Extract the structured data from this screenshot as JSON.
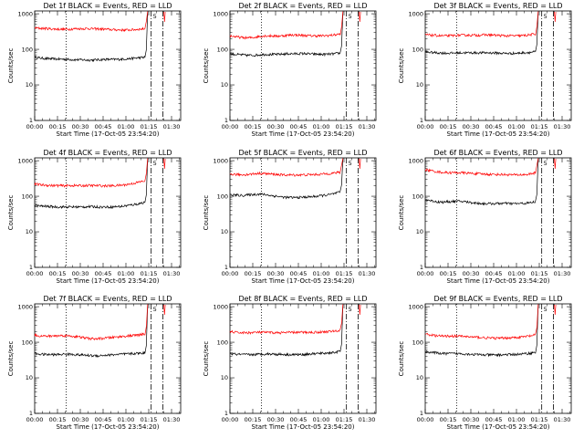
{
  "chart_data": [
    {
      "type": "line",
      "title": "Det 1f BLACK = Events, RED = LLD",
      "xlabel": "Start Time (17-Oct-05 23:54:20)",
      "ylabel": "Counts/sec",
      "x_tick_labels": [
        "00:00",
        "00:15",
        "00:30",
        "00:45",
        "01:00",
        "01:15",
        "01:30"
      ],
      "y_tick_labels": [
        "1",
        "10",
        "100",
        "1000"
      ],
      "ylim": [
        1,
        1200
      ],
      "y_scale": "log",
      "annotation": "5",
      "x_marks_min": [
        20.7,
        76.6,
        84.3
      ],
      "series": [
        {
          "name": "BLACK = Events",
          "color": "#000000",
          "end_min": 72.5,
          "values": [
            60,
            57,
            55,
            54,
            53,
            53,
            52,
            51,
            51,
            50,
            50,
            51,
            52,
            52,
            52,
            53,
            54,
            56,
            58,
            60
          ]
        },
        {
          "name": "RED = LLD",
          "color": "#ff0000",
          "end_min": 72.5,
          "values": [
            400,
            390,
            385,
            375,
            370,
            365,
            370,
            380,
            380,
            385,
            380,
            375,
            370,
            360,
            355,
            350,
            350,
            355,
            370,
            380
          ]
        }
      ]
    },
    {
      "type": "line",
      "title": "Det 2f BLACK = Events, RED = LLD",
      "xlabel": "Start Time (17-Oct-05 23:54:20)",
      "ylabel": "Counts/sec",
      "x_tick_labels": [
        "00:00",
        "00:15",
        "00:30",
        "00:45",
        "01:00",
        "01:15",
        "01:30"
      ],
      "y_tick_labels": [
        "1",
        "10",
        "100",
        "1000"
      ],
      "ylim": [
        1,
        1200
      ],
      "y_scale": "log",
      "annotation": "5",
      "x_marks_min": [
        20.7,
        76.6,
        84.3
      ],
      "series": [
        {
          "name": "BLACK = Events",
          "color": "#000000",
          "end_min": 72.5,
          "values": [
            75,
            72,
            70,
            68,
            68,
            70,
            72,
            72,
            72,
            73,
            75,
            75,
            76,
            76,
            74,
            73,
            72,
            73,
            75,
            78
          ]
        },
        {
          "name": "RED = LLD",
          "color": "#ff0000",
          "end_min": 72.5,
          "values": [
            240,
            225,
            215,
            210,
            215,
            230,
            240,
            240,
            235,
            240,
            250,
            255,
            250,
            245,
            240,
            240,
            240,
            245,
            255,
            270
          ]
        }
      ]
    },
    {
      "type": "line",
      "title": "Det 3f BLACK = Events, RED = LLD",
      "xlabel": "Start Time (17-Oct-05 23:54:20)",
      "ylabel": "Counts/sec",
      "x_tick_labels": [
        "00:00",
        "00:15",
        "00:30",
        "00:45",
        "01:00",
        "01:15",
        "01:30"
      ],
      "y_tick_labels": [
        "1",
        "10",
        "100",
        "1000"
      ],
      "ylim": [
        1,
        1200
      ],
      "y_scale": "log",
      "annotation": "5",
      "x_marks_min": [
        20.7,
        76.6,
        84.3
      ],
      "series": [
        {
          "name": "BLACK = Events",
          "color": "#000000",
          "end_min": 72.5,
          "values": [
            85,
            82,
            80,
            79,
            78,
            79,
            80,
            80,
            80,
            80,
            80,
            80,
            79,
            78,
            77,
            77,
            78,
            80,
            82,
            85
          ]
        },
        {
          "name": "RED = LLD",
          "color": "#ff0000",
          "end_min": 72.5,
          "values": [
            260,
            250,
            245,
            240,
            240,
            245,
            250,
            250,
            250,
            250,
            255,
            255,
            250,
            245,
            240,
            240,
            240,
            245,
            255,
            270
          ]
        }
      ]
    },
    {
      "type": "line",
      "title": "Det 4f BLACK = Events, RED = LLD",
      "xlabel": "Start Time (17-Oct-05 23:54:20)",
      "ylabel": "Counts/sec",
      "x_tick_labels": [
        "00:00",
        "00:15",
        "00:30",
        "00:45",
        "01:00",
        "01:15",
        "01:30"
      ],
      "y_tick_labels": [
        "1",
        "10",
        "100",
        "1000"
      ],
      "ylim": [
        1,
        1200
      ],
      "y_scale": "log",
      "annotation": "5",
      "x_marks_min": [
        20.7,
        76.6,
        84.3
      ],
      "series": [
        {
          "name": "BLACK = Events",
          "color": "#000000",
          "end_min": 72.5,
          "values": [
            55,
            53,
            52,
            51,
            50,
            50,
            50,
            50,
            50,
            51,
            51,
            50,
            50,
            50,
            51,
            52,
            55,
            58,
            62,
            68
          ]
        },
        {
          "name": "RED = LLD",
          "color": "#ff0000",
          "end_min": 72.5,
          "values": [
            220,
            210,
            205,
            200,
            200,
            198,
            200,
            200,
            198,
            200,
            200,
            198,
            196,
            196,
            200,
            205,
            215,
            230,
            250,
            270
          ]
        }
      ]
    },
    {
      "type": "line",
      "title": "Det 5f BLACK = Events, RED = LLD",
      "xlabel": "Start Time (17-Oct-05 23:54:20)",
      "ylabel": "Counts/sec",
      "x_tick_labels": [
        "00:00",
        "00:15",
        "00:30",
        "00:45",
        "01:00",
        "01:15",
        "01:30"
      ],
      "y_tick_labels": [
        "1",
        "10",
        "100",
        "1000"
      ],
      "ylim": [
        1,
        1200
      ],
      "y_scale": "log",
      "annotation": "5",
      "x_marks_min": [
        20.7,
        76.6,
        84.3
      ],
      "series": [
        {
          "name": "BLACK = Events",
          "color": "#000000",
          "end_min": 72.5,
          "values": [
            110,
            108,
            105,
            108,
            112,
            115,
            112,
            105,
            100,
            95,
            92,
            92,
            93,
            95,
            97,
            100,
            105,
            110,
            118,
            130
          ]
        },
        {
          "name": "RED = LLD",
          "color": "#ff0000",
          "end_min": 72.5,
          "values": [
            420,
            410,
            400,
            410,
            425,
            440,
            435,
            420,
            410,
            400,
            395,
            395,
            398,
            400,
            405,
            410,
            420,
            435,
            450,
            470
          ]
        }
      ]
    },
    {
      "type": "line",
      "title": "Det 6f BLACK = Events, RED = LLD",
      "xlabel": "Start Time (17-Oct-05 23:54:20)",
      "ylabel": "Counts/sec",
      "x_tick_labels": [
        "00:00",
        "00:15",
        "00:30",
        "00:45",
        "01:00",
        "01:15",
        "01:30"
      ],
      "y_tick_labels": [
        "1",
        "10",
        "100",
        "1000"
      ],
      "ylim": [
        1,
        1200
      ],
      "y_scale": "log",
      "annotation": "5",
      "x_marks_min": [
        20.7,
        76.6,
        84.3
      ],
      "series": [
        {
          "name": "BLACK = Events",
          "color": "#000000",
          "end_min": 72.5,
          "values": [
            80,
            75,
            70,
            68,
            70,
            72,
            72,
            70,
            66,
            64,
            62,
            62,
            62,
            63,
            63,
            62,
            62,
            63,
            65,
            70
          ]
        },
        {
          "name": "RED = LLD",
          "color": "#ff0000",
          "end_min": 72.5,
          "values": [
            560,
            520,
            490,
            470,
            460,
            460,
            460,
            450,
            440,
            430,
            420,
            415,
            410,
            410,
            405,
            400,
            400,
            405,
            420,
            460
          ]
        }
      ]
    },
    {
      "type": "line",
      "title": "Det 7f BLACK = Events, RED = LLD",
      "xlabel": "Start Time (17-Oct-05 23:54:20)",
      "ylabel": "Counts/sec",
      "x_tick_labels": [
        "00:00",
        "00:15",
        "00:30",
        "00:45",
        "01:00",
        "01:15",
        "01:30"
      ],
      "y_tick_labels": [
        "1",
        "10",
        "100",
        "1000"
      ],
      "ylim": [
        1,
        1200
      ],
      "y_scale": "log",
      "annotation": "5",
      "x_marks_min": [
        20.7,
        76.6,
        84.3
      ],
      "series": [
        {
          "name": "BLACK = Events",
          "color": "#000000",
          "end_min": 72.5,
          "values": [
            48,
            46,
            45,
            45,
            45,
            46,
            46,
            45,
            44,
            43,
            42,
            42,
            43,
            44,
            45,
            46,
            47,
            48,
            49,
            50
          ]
        },
        {
          "name": "RED = LLD",
          "color": "#ff0000",
          "end_min": 72.5,
          "values": [
            160,
            150,
            148,
            150,
            152,
            155,
            150,
            145,
            138,
            130,
            125,
            125,
            130,
            135,
            140,
            145,
            150,
            155,
            160,
            170
          ]
        }
      ]
    },
    {
      "type": "line",
      "title": "Det 8f BLACK = Events, RED = LLD",
      "xlabel": "Start Time (17-Oct-05 23:54:20)",
      "ylabel": "Counts/sec",
      "x_tick_labels": [
        "00:00",
        "00:15",
        "00:30",
        "00:45",
        "01:00",
        "01:15",
        "01:30"
      ],
      "y_tick_labels": [
        "1",
        "10",
        "100",
        "1000"
      ],
      "ylim": [
        1,
        1200
      ],
      "y_scale": "log",
      "annotation": "5",
      "x_marks_min": [
        20.7,
        76.6,
        84.3
      ],
      "series": [
        {
          "name": "BLACK = Events",
          "color": "#000000",
          "end_min": 72.5,
          "values": [
            48,
            46,
            45,
            45,
            45,
            46,
            47,
            47,
            46,
            46,
            45,
            45,
            45,
            46,
            47,
            48,
            49,
            50,
            52,
            55
          ]
        },
        {
          "name": "RED = LLD",
          "color": "#ff0000",
          "end_min": 72.5,
          "values": [
            200,
            190,
            185,
            185,
            188,
            190,
            190,
            188,
            185,
            185,
            188,
            190,
            190,
            190,
            190,
            192,
            195,
            200,
            205,
            215
          ]
        }
      ]
    },
    {
      "type": "line",
      "title": "Det 9f BLACK = Events, RED = LLD",
      "xlabel": "Start Time (17-Oct-05 23:54:20)",
      "ylabel": "Counts/sec",
      "x_tick_labels": [
        "00:00",
        "00:15",
        "00:30",
        "00:45",
        "01:00",
        "01:15",
        "01:30"
      ],
      "y_tick_labels": [
        "1",
        "10",
        "100",
        "1000"
      ],
      "ylim": [
        1,
        1200
      ],
      "y_scale": "log",
      "annotation": "5",
      "x_marks_min": [
        20.7,
        76.6,
        84.3
      ],
      "series": [
        {
          "name": "BLACK = Events",
          "color": "#000000",
          "end_min": 72.5,
          "values": [
            55,
            52,
            50,
            48,
            48,
            48,
            48,
            47,
            46,
            45,
            44,
            44,
            44,
            44,
            45,
            45,
            46,
            47,
            49,
            52
          ]
        },
        {
          "name": "RED = LLD",
          "color": "#ff0000",
          "end_min": 72.5,
          "values": [
            170,
            160,
            152,
            148,
            150,
            150,
            148,
            145,
            140,
            138,
            135,
            132,
            130,
            130,
            132,
            135,
            138,
            142,
            150,
            160
          ]
        }
      ]
    }
  ]
}
